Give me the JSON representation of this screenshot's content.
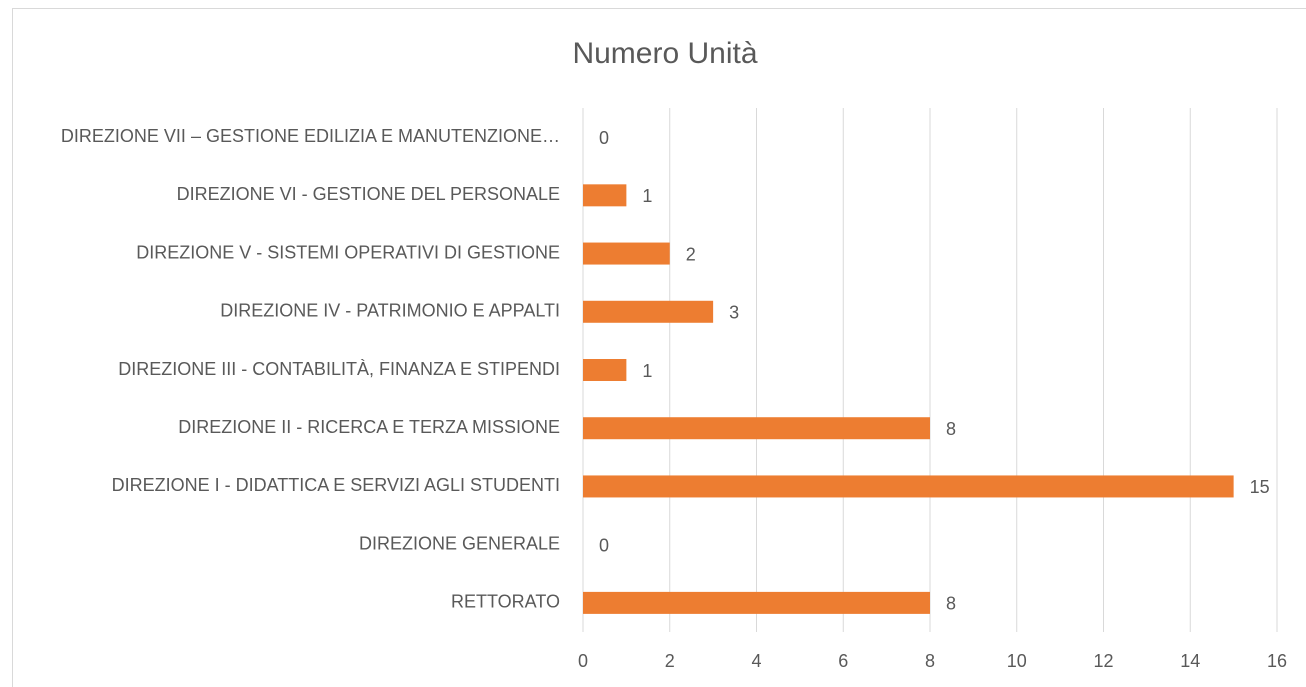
{
  "chart_data": {
    "type": "hbar",
    "title": "Numero Unità",
    "categories": [
      "DIREZIONE VII – GESTIONE EDILIZIA E MANUTENZIONE…",
      "DIREZIONE VI - GESTIONE DEL PERSONALE",
      "DIREZIONE V - SISTEMI OPERATIVI DI GESTIONE",
      "DIREZIONE IV - PATRIMONIO E APPALTI",
      "DIREZIONE III - CONTABILITÀ, FINANZA E STIPENDI",
      "DIREZIONE II - RICERCA E TERZA MISSIONE",
      "DIREZIONE I - DIDATTICA E SERVIZI AGLI STUDENTI",
      "DIREZIONE GENERALE",
      "RETTORATO"
    ],
    "values": [
      0,
      1,
      2,
      3,
      1,
      8,
      15,
      0,
      8
    ],
    "color": "#ed7d31",
    "xlim": [
      0,
      16
    ],
    "xticks": [
      0,
      2,
      4,
      6,
      8,
      10,
      12,
      14,
      16
    ],
    "grid": true
  }
}
